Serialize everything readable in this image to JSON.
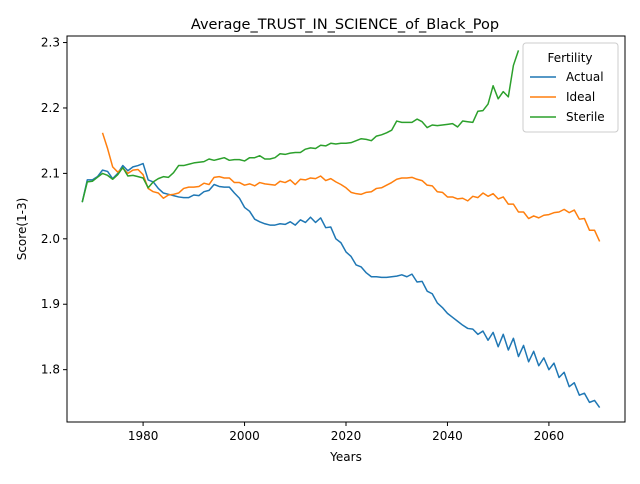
{
  "chart_data": {
    "type": "line",
    "title": "Average_TRUST_IN_SCIENCE_of_Black_Pop",
    "xlabel": "Years",
    "ylabel": "Score(1-3)",
    "xlim": [
      1965,
      2075
    ],
    "ylim": [
      1.72,
      2.31
    ],
    "xticks": [
      1980,
      2000,
      2020,
      2040,
      2060
    ],
    "yticks": [
      1.8,
      1.9,
      2.0,
      2.1,
      2.2,
      2.3
    ],
    "ytick_labels": [
      "1.8",
      "1.9",
      "2.0",
      "2.1",
      "2.2",
      "2.3"
    ],
    "grid": false,
    "legend": {
      "title": "Fertility",
      "position": "top-right"
    },
    "series": [
      {
        "name": "Actual",
        "color": "#1f77b4",
        "points": [
          [
            1968,
            2.056
          ],
          [
            1969,
            2.09
          ],
          [
            1970,
            2.09
          ],
          [
            1971,
            2.095
          ],
          [
            1972,
            2.105
          ],
          [
            1973,
            2.103
          ],
          [
            1974,
            2.092
          ],
          [
            1975,
            2.1
          ],
          [
            1976,
            2.112
          ],
          [
            1977,
            2.104
          ],
          [
            1978,
            2.11
          ],
          [
            1979,
            2.112
          ],
          [
            1980,
            2.115
          ],
          [
            1981,
            2.09
          ],
          [
            1982,
            2.087
          ],
          [
            1983,
            2.077
          ],
          [
            1984,
            2.07
          ],
          [
            1985,
            2.068
          ],
          [
            1986,
            2.066
          ],
          [
            1987,
            2.064
          ],
          [
            1988,
            2.063
          ],
          [
            1989,
            2.063
          ],
          [
            1990,
            2.067
          ],
          [
            1991,
            2.066
          ],
          [
            1992,
            2.072
          ],
          [
            1993,
            2.074
          ],
          [
            1994,
            2.083
          ],
          [
            1995,
            2.08
          ],
          [
            1996,
            2.079
          ],
          [
            1997,
            2.079
          ],
          [
            1998,
            2.07
          ],
          [
            1999,
            2.062
          ],
          [
            2000,
            2.048
          ],
          [
            2001,
            2.042
          ],
          [
            2002,
            2.03
          ],
          [
            2003,
            2.026
          ],
          [
            2004,
            2.023
          ],
          [
            2005,
            2.021
          ],
          [
            2006,
            2.021
          ],
          [
            2007,
            2.023
          ],
          [
            2008,
            2.022
          ],
          [
            2009,
            2.026
          ],
          [
            2010,
            2.021
          ],
          [
            2011,
            2.029
          ],
          [
            2012,
            2.025
          ],
          [
            2013,
            2.033
          ],
          [
            2014,
            2.025
          ],
          [
            2015,
            2.032
          ],
          [
            2016,
            2.017
          ],
          [
            2017,
            2.018
          ],
          [
            2018,
            2.0
          ],
          [
            2019,
            1.994
          ],
          [
            2020,
            1.98
          ],
          [
            2021,
            1.973
          ],
          [
            2022,
            1.96
          ],
          [
            2023,
            1.957
          ],
          [
            2024,
            1.948
          ],
          [
            2025,
            1.942
          ],
          [
            2026,
            1.942
          ],
          [
            2027,
            1.941
          ],
          [
            2028,
            1.941
          ],
          [
            2029,
            1.942
          ],
          [
            2030,
            1.943
          ],
          [
            2031,
            1.945
          ],
          [
            2032,
            1.942
          ],
          [
            2033,
            1.946
          ],
          [
            2034,
            1.934
          ],
          [
            2035,
            1.935
          ],
          [
            2036,
            1.92
          ],
          [
            2037,
            1.916
          ],
          [
            2038,
            1.902
          ],
          [
            2039,
            1.895
          ],
          [
            2040,
            1.886
          ],
          [
            2041,
            1.88
          ],
          [
            2042,
            1.874
          ],
          [
            2043,
            1.868
          ],
          [
            2044,
            1.863
          ],
          [
            2045,
            1.862
          ],
          [
            2046,
            1.854
          ],
          [
            2047,
            1.859
          ],
          [
            2048,
            1.845
          ],
          [
            2049,
            1.857
          ],
          [
            2050,
            1.835
          ],
          [
            2051,
            1.854
          ],
          [
            2052,
            1.83
          ],
          [
            2053,
            1.848
          ],
          [
            2054,
            1.82
          ],
          [
            2055,
            1.837
          ],
          [
            2056,
            1.812
          ],
          [
            2057,
            1.828
          ],
          [
            2058,
            1.806
          ],
          [
            2059,
            1.818
          ],
          [
            2060,
            1.8
          ],
          [
            2061,
            1.81
          ],
          [
            2062,
            1.788
          ],
          [
            2063,
            1.796
          ],
          [
            2064,
            1.774
          ],
          [
            2065,
            1.78
          ],
          [
            2066,
            1.761
          ],
          [
            2067,
            1.764
          ],
          [
            2068,
            1.75
          ],
          [
            2069,
            1.753
          ],
          [
            2070,
            1.742
          ]
        ]
      },
      {
        "name": "Ideal",
        "color": "#ff7f0e",
        "points": [
          [
            1972,
            2.162
          ],
          [
            1973,
            2.138
          ],
          [
            1974,
            2.11
          ],
          [
            1975,
            2.102
          ],
          [
            1976,
            2.108
          ],
          [
            1977,
            2.1
          ],
          [
            1978,
            2.105
          ],
          [
            1979,
            2.106
          ],
          [
            1980,
            2.098
          ],
          [
            1981,
            2.077
          ],
          [
            1982,
            2.072
          ],
          [
            1983,
            2.07
          ],
          [
            1984,
            2.062
          ],
          [
            1985,
            2.067
          ],
          [
            1986,
            2.068
          ],
          [
            1987,
            2.07
          ],
          [
            1988,
            2.077
          ],
          [
            1989,
            2.079
          ],
          [
            1990,
            2.079
          ],
          [
            1991,
            2.08
          ],
          [
            1992,
            2.085
          ],
          [
            1993,
            2.083
          ],
          [
            1994,
            2.094
          ],
          [
            1995,
            2.095
          ],
          [
            1996,
            2.093
          ],
          [
            1997,
            2.093
          ],
          [
            1998,
            2.086
          ],
          [
            1999,
            2.086
          ],
          [
            2000,
            2.082
          ],
          [
            2001,
            2.084
          ],
          [
            2002,
            2.081
          ],
          [
            2003,
            2.086
          ],
          [
            2004,
            2.084
          ],
          [
            2005,
            2.083
          ],
          [
            2006,
            2.082
          ],
          [
            2007,
            2.088
          ],
          [
            2008,
            2.086
          ],
          [
            2009,
            2.09
          ],
          [
            2010,
            2.083
          ],
          [
            2011,
            2.091
          ],
          [
            2012,
            2.09
          ],
          [
            2013,
            2.093
          ],
          [
            2014,
            2.092
          ],
          [
            2015,
            2.096
          ],
          [
            2016,
            2.089
          ],
          [
            2017,
            2.092
          ],
          [
            2018,
            2.087
          ],
          [
            2019,
            2.083
          ],
          [
            2020,
            2.078
          ],
          [
            2021,
            2.071
          ],
          [
            2022,
            2.069
          ],
          [
            2023,
            2.068
          ],
          [
            2024,
            2.071
          ],
          [
            2025,
            2.072
          ],
          [
            2026,
            2.077
          ],
          [
            2027,
            2.078
          ],
          [
            2028,
            2.082
          ],
          [
            2029,
            2.086
          ],
          [
            2030,
            2.091
          ],
          [
            2031,
            2.093
          ],
          [
            2032,
            2.093
          ],
          [
            2033,
            2.094
          ],
          [
            2034,
            2.091
          ],
          [
            2035,
            2.089
          ],
          [
            2036,
            2.082
          ],
          [
            2037,
            2.081
          ],
          [
            2038,
            2.072
          ],
          [
            2039,
            2.071
          ],
          [
            2040,
            2.064
          ],
          [
            2041,
            2.064
          ],
          [
            2042,
            2.061
          ],
          [
            2043,
            2.062
          ],
          [
            2044,
            2.058
          ],
          [
            2045,
            2.065
          ],
          [
            2046,
            2.063
          ],
          [
            2047,
            2.07
          ],
          [
            2048,
            2.065
          ],
          [
            2049,
            2.069
          ],
          [
            2050,
            2.061
          ],
          [
            2051,
            2.064
          ],
          [
            2052,
            2.053
          ],
          [
            2053,
            2.053
          ],
          [
            2054,
            2.041
          ],
          [
            2055,
            2.041
          ],
          [
            2056,
            2.031
          ],
          [
            2057,
            2.035
          ],
          [
            2058,
            2.032
          ],
          [
            2059,
            2.036
          ],
          [
            2060,
            2.037
          ],
          [
            2061,
            2.04
          ],
          [
            2062,
            2.041
          ],
          [
            2063,
            2.045
          ],
          [
            2064,
            2.04
          ],
          [
            2065,
            2.044
          ],
          [
            2066,
            2.03
          ],
          [
            2067,
            2.031
          ],
          [
            2068,
            2.013
          ],
          [
            2069,
            2.013
          ],
          [
            2070,
            1.996
          ]
        ]
      },
      {
        "name": "Sterile",
        "color": "#2ca02c",
        "points": [
          [
            1968,
            2.056
          ],
          [
            1969,
            2.087
          ],
          [
            1970,
            2.088
          ],
          [
            1971,
            2.094
          ],
          [
            1972,
            2.1
          ],
          [
            1973,
            2.097
          ],
          [
            1974,
            2.091
          ],
          [
            1975,
            2.098
          ],
          [
            1976,
            2.109
          ],
          [
            1977,
            2.096
          ],
          [
            1978,
            2.097
          ],
          [
            1979,
            2.095
          ],
          [
            1980,
            2.093
          ],
          [
            1981,
            2.078
          ],
          [
            1982,
            2.087
          ],
          [
            1983,
            2.092
          ],
          [
            1984,
            2.095
          ],
          [
            1985,
            2.094
          ],
          [
            1986,
            2.101
          ],
          [
            1987,
            2.112
          ],
          [
            1988,
            2.112
          ],
          [
            1989,
            2.114
          ],
          [
            1990,
            2.116
          ],
          [
            1991,
            2.117
          ],
          [
            1992,
            2.118
          ],
          [
            1993,
            2.122
          ],
          [
            1994,
            2.12
          ],
          [
            1995,
            2.122
          ],
          [
            1996,
            2.124
          ],
          [
            1997,
            2.12
          ],
          [
            1998,
            2.121
          ],
          [
            1999,
            2.121
          ],
          [
            2000,
            2.119
          ],
          [
            2001,
            2.124
          ],
          [
            2002,
            2.124
          ],
          [
            2003,
            2.127
          ],
          [
            2004,
            2.122
          ],
          [
            2005,
            2.122
          ],
          [
            2006,
            2.124
          ],
          [
            2007,
            2.13
          ],
          [
            2008,
            2.129
          ],
          [
            2009,
            2.131
          ],
          [
            2010,
            2.132
          ],
          [
            2011,
            2.132
          ],
          [
            2012,
            2.137
          ],
          [
            2013,
            2.139
          ],
          [
            2014,
            2.138
          ],
          [
            2015,
            2.143
          ],
          [
            2016,
            2.142
          ],
          [
            2017,
            2.146
          ],
          [
            2018,
            2.145
          ],
          [
            2019,
            2.146
          ],
          [
            2020,
            2.146
          ],
          [
            2021,
            2.147
          ],
          [
            2022,
            2.15
          ],
          [
            2023,
            2.153
          ],
          [
            2024,
            2.152
          ],
          [
            2025,
            2.15
          ],
          [
            2026,
            2.157
          ],
          [
            2027,
            2.159
          ],
          [
            2028,
            2.162
          ],
          [
            2029,
            2.166
          ],
          [
            2030,
            2.18
          ],
          [
            2031,
            2.178
          ],
          [
            2032,
            2.178
          ],
          [
            2033,
            2.178
          ],
          [
            2034,
            2.183
          ],
          [
            2035,
            2.179
          ],
          [
            2036,
            2.17
          ],
          [
            2037,
            2.174
          ],
          [
            2038,
            2.173
          ],
          [
            2039,
            2.174
          ],
          [
            2040,
            2.175
          ],
          [
            2041,
            2.176
          ],
          [
            2042,
            2.171
          ],
          [
            2043,
            2.18
          ],
          [
            2044,
            2.179
          ],
          [
            2045,
            2.178
          ],
          [
            2046,
            2.195
          ],
          [
            2047,
            2.196
          ],
          [
            2048,
            2.206
          ],
          [
            2049,
            2.234
          ],
          [
            2050,
            2.214
          ],
          [
            2051,
            2.225
          ],
          [
            2052,
            2.217
          ],
          [
            2053,
            2.265
          ],
          [
            2054,
            2.288
          ]
        ]
      }
    ]
  }
}
